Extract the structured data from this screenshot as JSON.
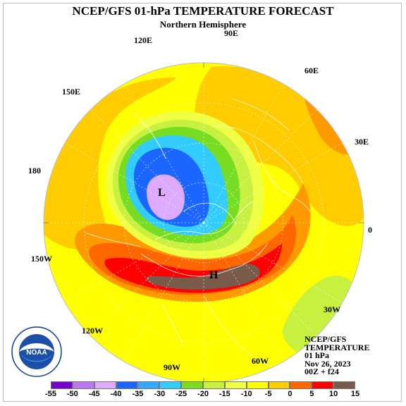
{
  "header": {
    "title": "NCEP/GFS 01-hPa TEMPERATURE FORECAST",
    "subtitle": "Northern Hemisphere"
  },
  "longitude_labels": [
    "90E",
    "120E",
    "60E",
    "150E",
    "30E",
    "180",
    "0",
    "150W",
    "30W",
    "120W",
    "90W",
    "60W"
  ],
  "map": {
    "projection": "north-polar-stereographic",
    "low_center_label": "L",
    "high_center_label": "H",
    "fill_colors": {
      "yellow": "#ffff00",
      "light_orange": "#ffcc00",
      "orange": "#ff9900",
      "dark_orange": "#ff6600",
      "red": "#ff0000",
      "brown": "#7a5a48",
      "pale_yellow": "#eeff44",
      "light_green": "#c8f040",
      "green": "#77dd22",
      "cyan": "#33ccff",
      "blue": "#1a66ff",
      "lavender": "#ddaaff"
    }
  },
  "info": {
    "line1": "NCEP/GFS",
    "line2": "TEMPERATURE",
    "line3": "01 hPa",
    "line4": "Nov 26, 2023",
    "line5": "00Z + f24"
  },
  "logo": {
    "text": "NOAA",
    "icon": "noaa-logo-icon"
  },
  "legend": {
    "ticks": [
      "-55",
      "-50",
      "-45",
      "-40",
      "-35",
      "-30",
      "-25",
      "-20",
      "-15",
      "-10",
      "-5",
      "0",
      "5",
      "10",
      "15"
    ],
    "colors": [
      "#7700cc",
      "#bb77ee",
      "#ddaaff",
      "#1a66ff",
      "#33aaff",
      "#33ccff",
      "#77dd22",
      "#c8f040",
      "#eeff44",
      "#ffff00",
      "#ffcc00",
      "#ff6600",
      "#ff0000",
      "#7a5a48"
    ]
  }
}
